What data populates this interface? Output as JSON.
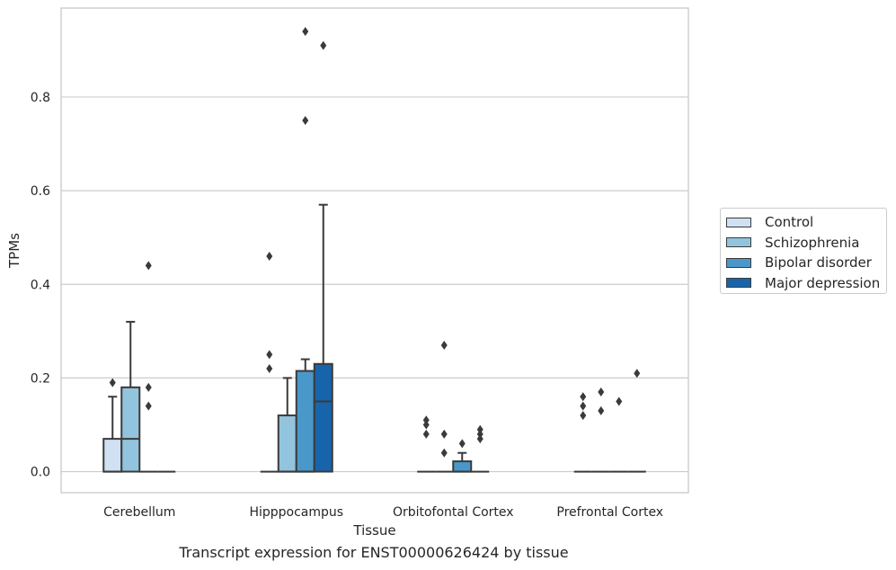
{
  "chart_data": {
    "type": "box",
    "caption": "Transcript expression for ENST00000626424 by tissue",
    "xlabel": "Tissue",
    "ylabel": "TPMs",
    "ylim": [
      -0.045,
      0.99
    ],
    "yticks": [
      0.0,
      0.2,
      0.4,
      0.6,
      0.8
    ],
    "ytick_labels": [
      "0.0",
      "0.2",
      "0.4",
      "0.6",
      "0.8"
    ],
    "grid": "horizontal",
    "legend_position": "right",
    "categories": [
      "Cerebellum",
      "Hipppocampus",
      "Orbitofontal Cortex",
      "Prefrontal Cortex"
    ],
    "series": [
      {
        "name": "Control",
        "color": "#cfe1f2",
        "boxes": [
          {
            "q1": 0,
            "median": 0,
            "q3": 0.07,
            "whisker_low": 0,
            "whisker_high": 0.16,
            "outliers": [
              0.19
            ]
          },
          {
            "q1": 0,
            "median": 0,
            "q3": 0,
            "whisker_low": 0,
            "whisker_high": 0,
            "outliers": [
              0.46,
              0.25,
              0.22
            ]
          },
          {
            "q1": 0,
            "median": 0,
            "q3": 0,
            "whisker_low": 0,
            "whisker_high": 0,
            "outliers": [
              0.11,
              0.1,
              0.08
            ]
          },
          {
            "q1": 0,
            "median": 0,
            "q3": 0,
            "whisker_low": 0,
            "whisker_high": 0,
            "outliers": [
              0.16,
              0.14,
              0.12
            ]
          }
        ]
      },
      {
        "name": "Schizophrenia",
        "color": "#93c4de",
        "boxes": [
          {
            "q1": 0,
            "median": 0.07,
            "q3": 0.18,
            "whisker_low": 0,
            "whisker_high": 0.32,
            "outliers": []
          },
          {
            "q1": 0,
            "median": 0,
            "q3": 0.12,
            "whisker_low": 0,
            "whisker_high": 0.2,
            "outliers": []
          },
          {
            "q1": 0,
            "median": 0,
            "q3": 0,
            "whisker_low": 0,
            "whisker_high": 0,
            "outliers": [
              0.27,
              0.08,
              0.04
            ]
          },
          {
            "q1": 0,
            "median": 0,
            "q3": 0,
            "whisker_low": 0,
            "whisker_high": 0,
            "outliers": [
              0.17,
              0.13
            ]
          }
        ]
      },
      {
        "name": "Bipolar disorder",
        "color": "#4a98c9",
        "boxes": [
          {
            "q1": 0,
            "median": 0,
            "q3": 0,
            "whisker_low": 0,
            "whisker_high": 0,
            "outliers": [
              0.44,
              0.18,
              0.14
            ]
          },
          {
            "q1": 0,
            "median": 0,
            "q3": 0.215,
            "whisker_low": 0,
            "whisker_high": 0.24,
            "outliers": [
              0.94,
              0.75
            ]
          },
          {
            "q1": 0,
            "median": 0,
            "q3": 0.022,
            "whisker_low": 0,
            "whisker_high": 0.04,
            "outliers": [
              0.06
            ]
          },
          {
            "q1": 0,
            "median": 0,
            "q3": 0,
            "whisker_low": 0,
            "whisker_high": 0,
            "outliers": [
              0.15
            ]
          }
        ]
      },
      {
        "name": "Major depression",
        "color": "#1764ab",
        "boxes": [
          {
            "q1": 0,
            "median": 0,
            "q3": 0,
            "whisker_low": 0,
            "whisker_high": 0,
            "outliers": []
          },
          {
            "q1": 0,
            "median": 0.15,
            "q3": 0.23,
            "whisker_low": 0,
            "whisker_high": 0.57,
            "outliers": [
              0.91
            ]
          },
          {
            "q1": 0,
            "median": 0,
            "q3": 0,
            "whisker_low": 0,
            "whisker_high": 0,
            "outliers": [
              0.09,
              0.08,
              0.07
            ]
          },
          {
            "q1": 0,
            "median": 0,
            "q3": 0,
            "whisker_low": 0,
            "whisker_high": 0,
            "outliers": [
              0.21
            ]
          }
        ]
      }
    ]
  },
  "colors": {
    "edge": "#3a3a3a",
    "grid": "#cccccc",
    "frame": "#cccccc"
  }
}
